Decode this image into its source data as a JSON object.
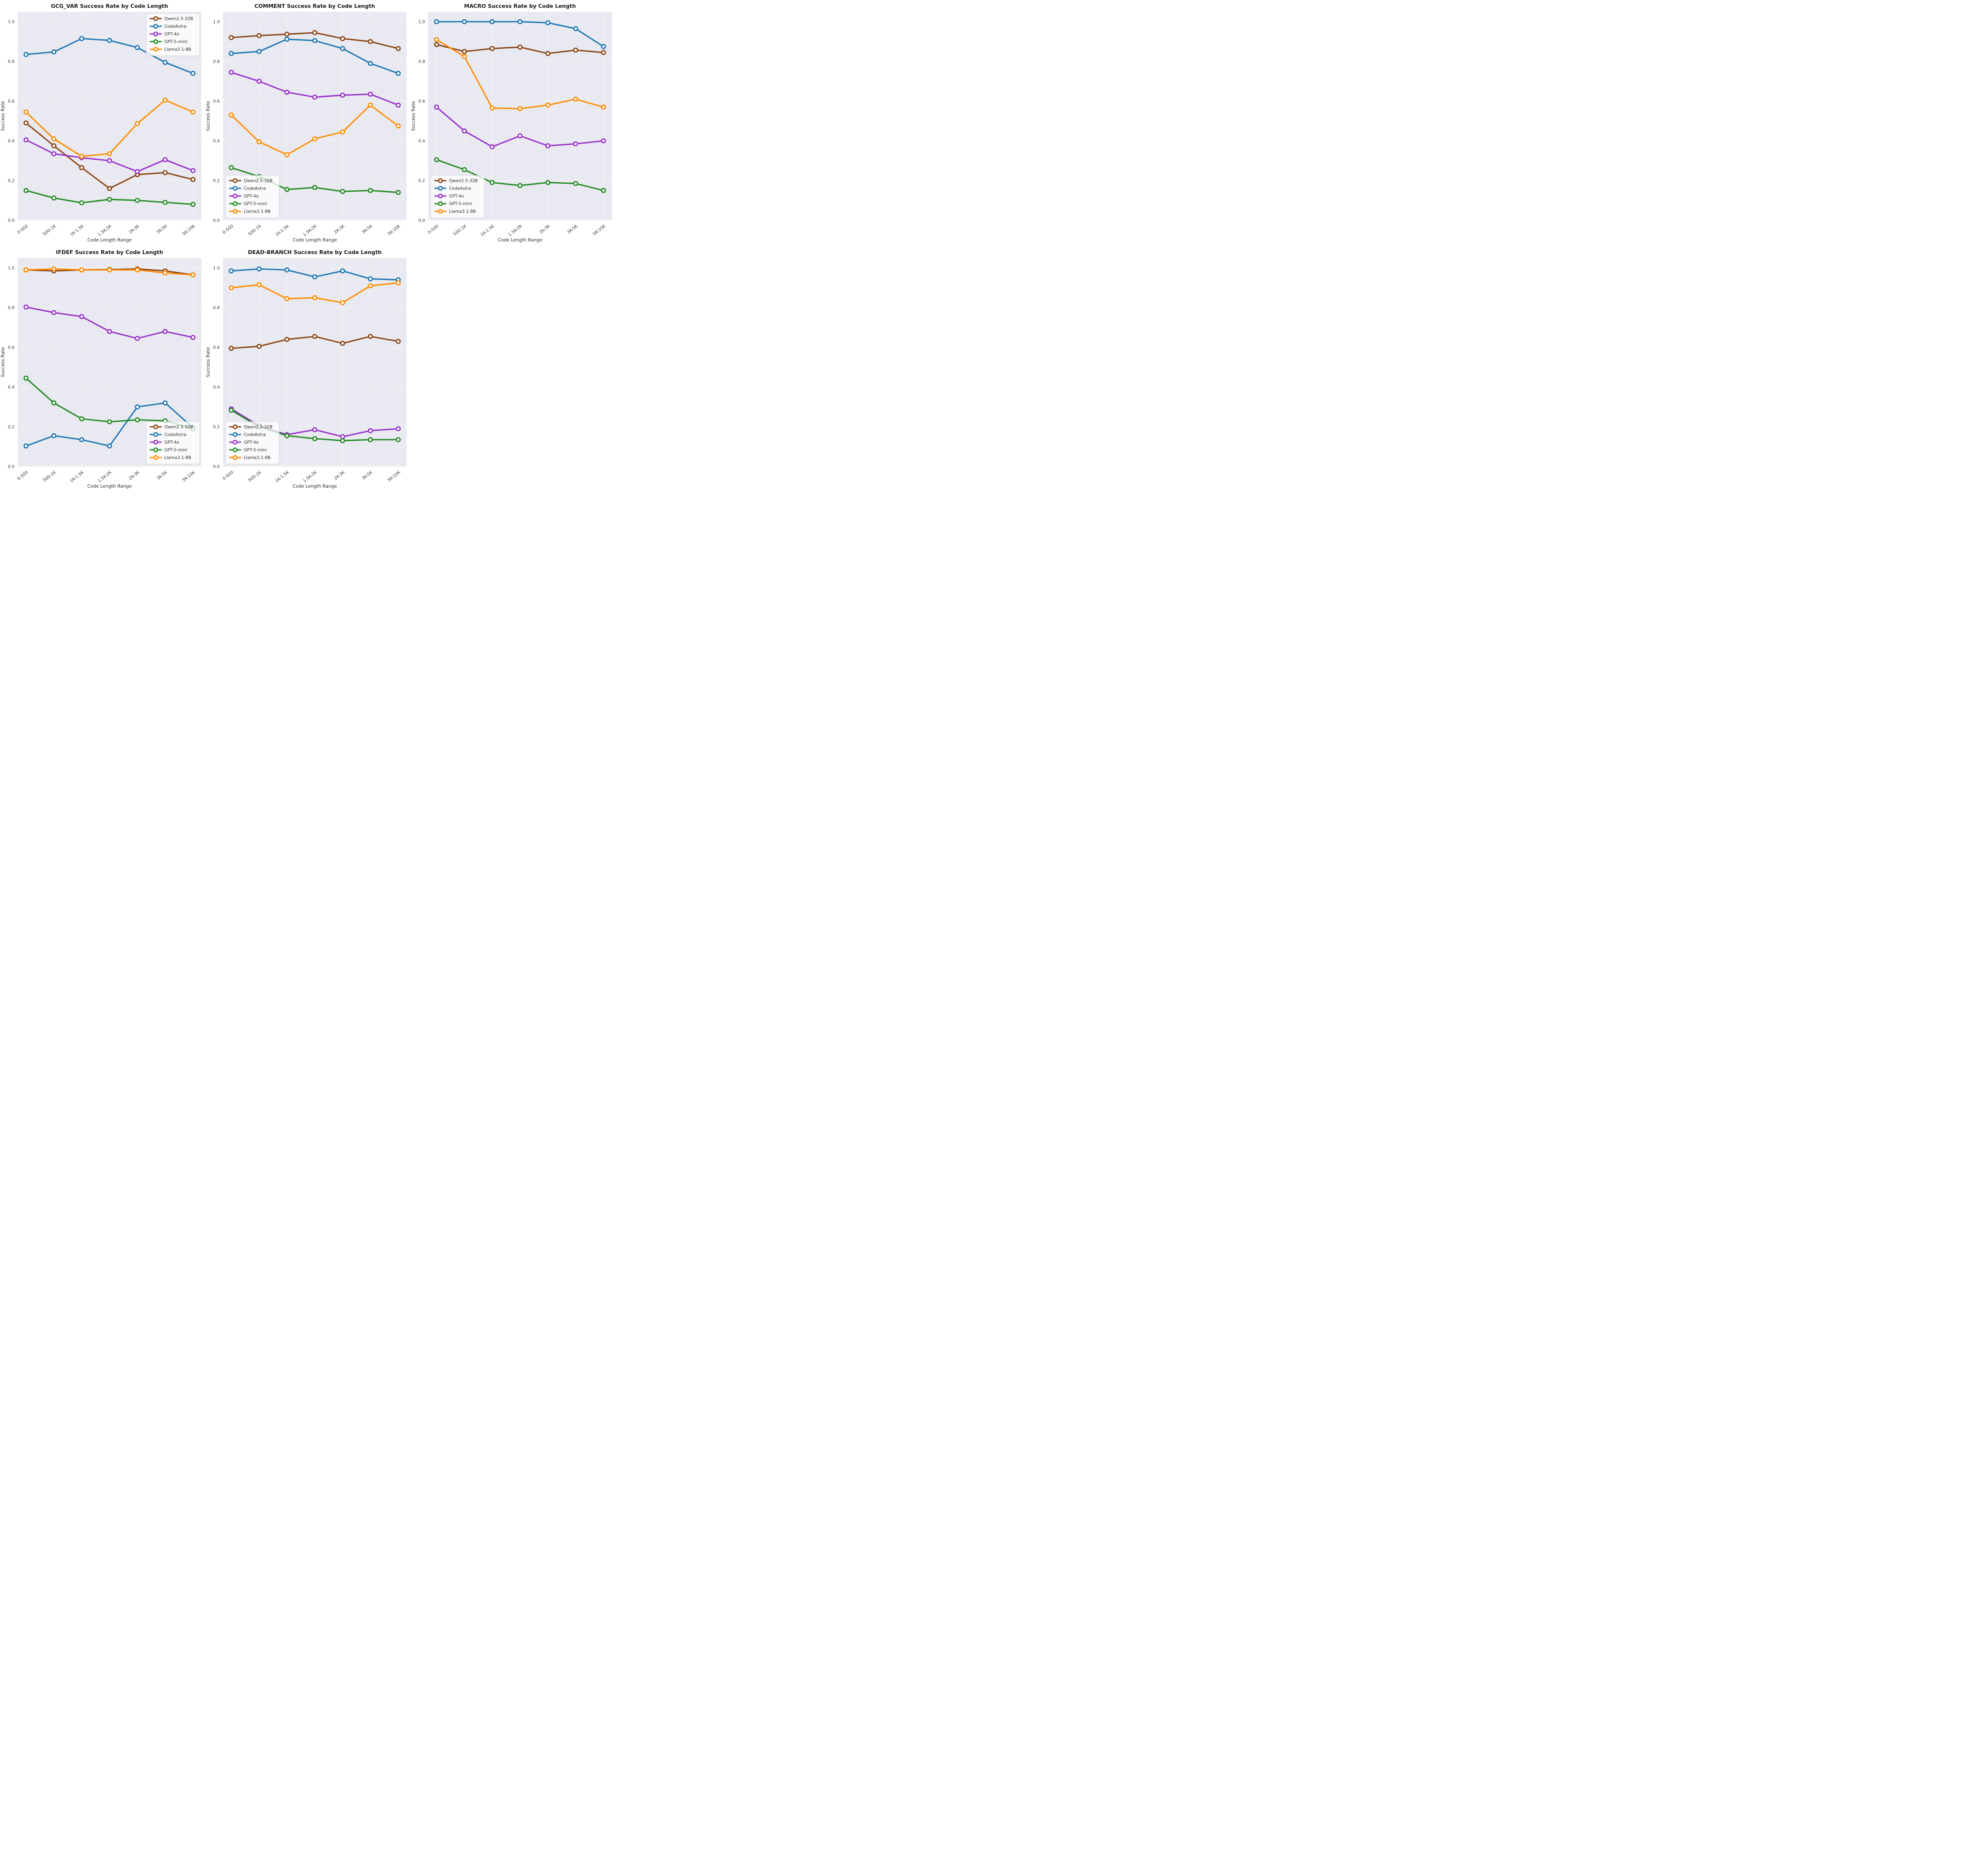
{
  "style": {
    "figure_bg": "#ffffff",
    "axes_bg": "#E9E9F1",
    "grid": "#F4F4F7",
    "tick_text": "#3d3d3d",
    "label_text": "#2e2e2e",
    "title_text": "#1a1a1a",
    "legend_bg": "rgba(255,255,255,0.75)",
    "legend_border": "#cfcfd9"
  },
  "chart_data": [
    {
      "type": "line",
      "title": "GCG_VAR Success Rate by Code Length",
      "xlabel": "Code Length Range",
      "ylabel": "Success Rate",
      "categories": [
        "0-500",
        "500-1K",
        "1K-1.5K",
        "1.5K-2K",
        "2K-3K",
        "3K-5K",
        "5K-10K"
      ],
      "yticks": [
        0.0,
        0.2,
        0.4,
        0.6,
        0.8,
        1.0
      ],
      "ylim": [
        0,
        1.05
      ],
      "grid": true,
      "legend_position": "upper-right",
      "series": [
        {
          "name": "Qwen2.5-32B",
          "color": "#8B4513",
          "values": [
            0.49,
            0.375,
            0.265,
            0.16,
            0.23,
            0.24,
            0.205
          ]
        },
        {
          "name": "CodeAstra",
          "color": "#1F77B4",
          "values": [
            0.835,
            0.848,
            0.915,
            0.906,
            0.87,
            0.795,
            0.74
          ]
        },
        {
          "name": "GPT-4o",
          "color": "#9932CC",
          "values": [
            0.405,
            0.335,
            0.315,
            0.3,
            0.245,
            0.305,
            0.25
          ]
        },
        {
          "name": "GPT-5-mini",
          "color": "#228B22",
          "values": [
            0.15,
            0.112,
            0.088,
            0.105,
            0.1,
            0.09,
            0.08
          ]
        },
        {
          "name": "Llama3.1-8B",
          "color": "#FF8C00",
          "values": [
            0.545,
            0.41,
            0.322,
            0.335,
            0.487,
            0.605,
            0.545
          ]
        }
      ]
    },
    {
      "type": "line",
      "title": "COMMENT Success Rate by Code Length",
      "xlabel": "Code Length Range",
      "ylabel": "Success Rate",
      "categories": [
        "0-500",
        "500-1K",
        "1K-1.5K",
        "1.5K-2K",
        "2K-3K",
        "3K-5K",
        "5K-10K"
      ],
      "yticks": [
        0.0,
        0.2,
        0.4,
        0.6,
        0.8,
        1.0
      ],
      "ylim": [
        0,
        1.05
      ],
      "grid": true,
      "legend_position": "lower-left",
      "series": [
        {
          "name": "Qwen2.5-32B",
          "color": "#8B4513",
          "values": [
            0.92,
            0.93,
            0.937,
            0.945,
            0.915,
            0.9,
            0.865
          ]
        },
        {
          "name": "CodeAstra",
          "color": "#1F77B4",
          "values": [
            0.84,
            0.85,
            0.912,
            0.905,
            0.865,
            0.79,
            0.74
          ]
        },
        {
          "name": "GPT-4o",
          "color": "#9932CC",
          "values": [
            0.745,
            0.7,
            0.645,
            0.62,
            0.63,
            0.635,
            0.58
          ]
        },
        {
          "name": "GPT-5-mini",
          "color": "#228B22",
          "values": [
            0.265,
            0.22,
            0.155,
            0.165,
            0.145,
            0.15,
            0.14
          ]
        },
        {
          "name": "Llama3.1-8B",
          "color": "#FF8C00",
          "values": [
            0.53,
            0.395,
            0.33,
            0.41,
            0.445,
            0.58,
            0.475
          ]
        }
      ]
    },
    {
      "type": "line",
      "title": "MACRO Success Rate by Code Length",
      "xlabel": "Code Length Range",
      "ylabel": "Success Rate",
      "categories": [
        "0-500",
        "500-1K",
        "1K-1.5K",
        "1.5K-2K",
        "2K-3K",
        "3K-5K",
        "5K-10K"
      ],
      "yticks": [
        0.0,
        0.2,
        0.4,
        0.6,
        0.8,
        1.0
      ],
      "ylim": [
        0,
        1.05
      ],
      "grid": true,
      "legend_position": "lower-left",
      "series": [
        {
          "name": "Qwen2.5-32B",
          "color": "#8B4513",
          "values": [
            0.885,
            0.85,
            0.865,
            0.872,
            0.84,
            0.857,
            0.845
          ]
        },
        {
          "name": "CodeAstra",
          "color": "#1F77B4",
          "values": [
            1.0,
            1.0,
            1.0,
            1.0,
            0.995,
            0.965,
            0.875
          ]
        },
        {
          "name": "GPT-4o",
          "color": "#9932CC",
          "values": [
            0.57,
            0.45,
            0.37,
            0.425,
            0.375,
            0.385,
            0.4
          ]
        },
        {
          "name": "GPT-5-mini",
          "color": "#228B22",
          "values": [
            0.305,
            0.255,
            0.19,
            0.175,
            0.19,
            0.185,
            0.15
          ]
        },
        {
          "name": "Llama3.1-8B",
          "color": "#FF8C00",
          "values": [
            0.91,
            0.825,
            0.565,
            0.562,
            0.58,
            0.61,
            0.57
          ]
        }
      ]
    },
    {
      "type": "line",
      "title": "IFDEF Success Rate by Code Length",
      "xlabel": "Code Length Range",
      "ylabel": "Success Rate",
      "categories": [
        "0-500",
        "500-1K",
        "1K-1.5K",
        "1.5K-2K",
        "2K-3K",
        "3K-5K",
        "5K-10K"
      ],
      "yticks": [
        0.0,
        0.2,
        0.4,
        0.6,
        0.8,
        1.0
      ],
      "ylim": [
        0,
        1.05
      ],
      "grid": true,
      "legend_position": "lower-right",
      "series": [
        {
          "name": "Qwen2.5-32B",
          "color": "#8B4513",
          "values": [
            0.99,
            0.985,
            0.99,
            0.992,
            0.995,
            0.985,
            0.965
          ]
        },
        {
          "name": "CodeAstra",
          "color": "#1F77B4",
          "values": [
            0.103,
            0.155,
            0.135,
            0.103,
            0.3,
            0.32,
            0.195
          ]
        },
        {
          "name": "GPT-4o",
          "color": "#9932CC",
          "values": [
            0.803,
            0.775,
            0.755,
            0.68,
            0.645,
            0.68,
            0.65
          ]
        },
        {
          "name": "GPT-5-mini",
          "color": "#228B22",
          "values": [
            0.445,
            0.32,
            0.24,
            0.225,
            0.235,
            0.23,
            0.19
          ]
        },
        {
          "name": "Llama3.1-8B",
          "color": "#FF8C00",
          "values": [
            0.99,
            0.995,
            0.99,
            0.99,
            0.99,
            0.975,
            0.965
          ]
        }
      ]
    },
    {
      "type": "line",
      "title": "DEAD-BRANCH Success Rate by Code Length",
      "xlabel": "Code Length Range",
      "ylabel": "Success Rate",
      "categories": [
        "0-500",
        "500-1K",
        "1K-1.5K",
        "1.5K-2K",
        "2K-3K",
        "3K-5K",
        "5K-10K"
      ],
      "yticks": [
        0.0,
        0.2,
        0.4,
        0.6,
        0.8,
        1.0
      ],
      "ylim": [
        0,
        1.05
      ],
      "grid": true,
      "legend_position": "lower-left",
      "series": [
        {
          "name": "Qwen2.5-32B",
          "color": "#8B4513",
          "values": [
            0.595,
            0.605,
            0.64,
            0.655,
            0.62,
            0.655,
            0.63
          ]
        },
        {
          "name": "CodeAstra",
          "color": "#1F77B4",
          "values": [
            0.985,
            0.995,
            0.99,
            0.955,
            0.985,
            0.945,
            0.94
          ]
        },
        {
          "name": "GPT-4o",
          "color": "#9932CC",
          "values": [
            0.29,
            0.205,
            0.16,
            0.185,
            0.15,
            0.18,
            0.19
          ]
        },
        {
          "name": "GPT-5-mini",
          "color": "#228B22",
          "values": [
            0.283,
            0.2,
            0.155,
            0.14,
            0.13,
            0.135,
            0.135
          ]
        },
        {
          "name": "Llama3.1-8B",
          "color": "#FF8C00",
          "values": [
            0.9,
            0.915,
            0.845,
            0.85,
            0.825,
            0.91,
            0.925
          ]
        }
      ]
    }
  ]
}
